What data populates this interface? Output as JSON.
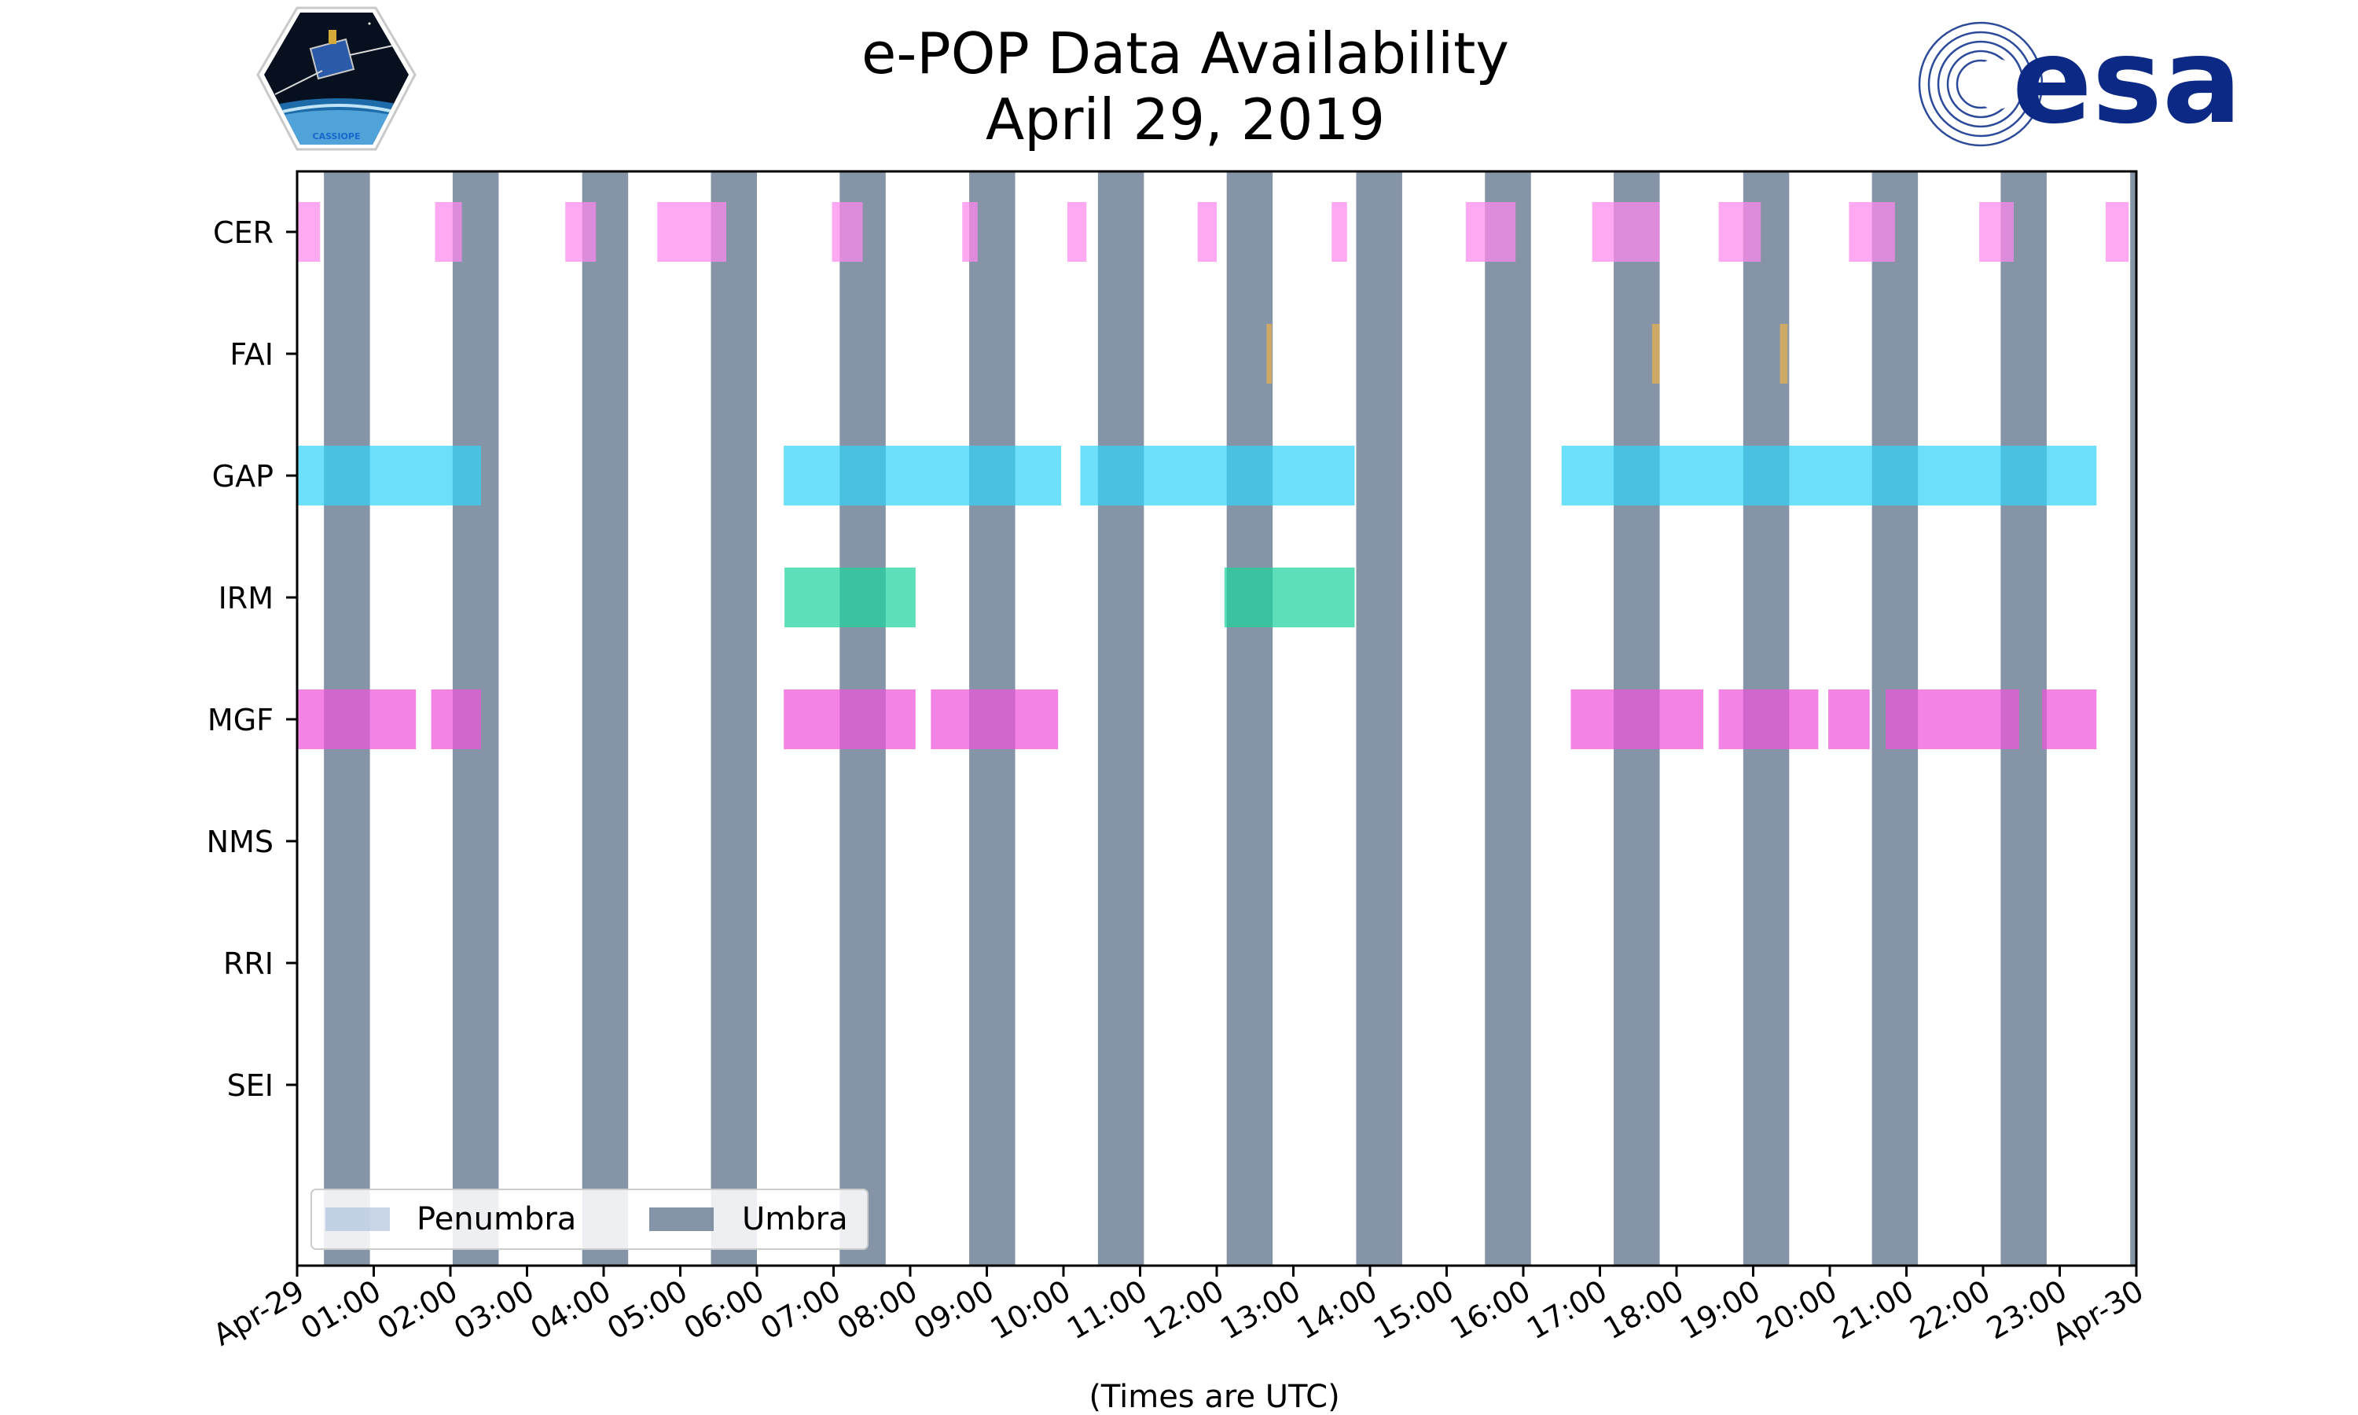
{
  "chart_data": {
    "type": "timeline",
    "title": "e-POP Data Availability",
    "subtitle": "April 29, 2019",
    "xlabel": "(Times are UTC)",
    "xlim": [
      0,
      24
    ],
    "x_tick_labels": [
      "Apr-29",
      "01:00",
      "02:00",
      "03:00",
      "04:00",
      "05:00",
      "06:00",
      "07:00",
      "08:00",
      "09:00",
      "10:00",
      "11:00",
      "12:00",
      "13:00",
      "14:00",
      "15:00",
      "16:00",
      "17:00",
      "18:00",
      "19:00",
      "20:00",
      "21:00",
      "22:00",
      "23:00",
      "Apr-30"
    ],
    "instruments": [
      "CER",
      "FAI",
      "GAP",
      "IRM",
      "MGF",
      "NMS",
      "RRI",
      "SEI"
    ],
    "legend": {
      "position": "lower-left",
      "entries": [
        {
          "name": "Penumbra",
          "color": "#b0c4de"
        },
        {
          "name": "Umbra",
          "color": "#5c7088"
        }
      ]
    },
    "umbra_periods": [
      [
        0.35,
        0.95
      ],
      [
        2.03,
        2.63
      ],
      [
        3.72,
        4.32
      ],
      [
        5.4,
        6.0
      ],
      [
        7.08,
        7.68
      ],
      [
        8.77,
        9.37
      ],
      [
        10.45,
        11.05
      ],
      [
        12.13,
        12.73
      ],
      [
        13.82,
        14.42
      ],
      [
        15.5,
        16.1
      ],
      [
        17.18,
        17.78
      ],
      [
        18.87,
        19.47
      ],
      [
        20.55,
        21.15
      ],
      [
        22.23,
        22.83
      ],
      [
        23.92,
        24.0
      ]
    ],
    "series": [
      {
        "name": "CER",
        "color": "#ff88ee",
        "intervals": [
          [
            0.0,
            0.3
          ],
          [
            1.8,
            2.15
          ],
          [
            3.5,
            3.9
          ],
          [
            4.7,
            5.6
          ],
          [
            6.98,
            7.38
          ],
          [
            8.68,
            8.88
          ],
          [
            10.05,
            10.3
          ],
          [
            11.75,
            12.0
          ],
          [
            13.5,
            13.7
          ],
          [
            15.25,
            15.9
          ],
          [
            16.9,
            17.78
          ],
          [
            18.55,
            19.1
          ],
          [
            20.25,
            20.85
          ],
          [
            21.95,
            22.4
          ],
          [
            23.6,
            23.9
          ]
        ]
      },
      {
        "name": "FAI",
        "color": "#e8b24e",
        "intervals": [
          [
            12.65,
            12.72
          ],
          [
            17.68,
            17.78
          ],
          [
            19.35,
            19.45
          ]
        ]
      },
      {
        "name": "GAP",
        "color": "#33d2f8",
        "intervals": [
          [
            0.0,
            2.4
          ],
          [
            6.35,
            9.97
          ],
          [
            10.22,
            13.8
          ],
          [
            16.5,
            23.48
          ]
        ]
      },
      {
        "name": "IRM",
        "color": "#1fd4a0",
        "intervals": [
          [
            6.36,
            8.07
          ],
          [
            12.1,
            13.8
          ]
        ]
      },
      {
        "name": "MGF",
        "color": "#ee55dd",
        "intervals": [
          [
            0.0,
            1.55
          ],
          [
            1.75,
            2.4
          ],
          [
            6.35,
            8.07
          ],
          [
            8.27,
            9.93
          ],
          [
            16.62,
            18.35
          ],
          [
            18.55,
            19.85
          ],
          [
            19.98,
            20.52
          ],
          [
            20.73,
            22.47
          ],
          [
            22.77,
            23.48
          ]
        ]
      },
      {
        "name": "NMS",
        "color": "#999999",
        "intervals": []
      },
      {
        "name": "RRI",
        "color": "#999999",
        "intervals": []
      },
      {
        "name": "SEI",
        "color": "#999999",
        "intervals": []
      }
    ]
  },
  "logos": {
    "left": "CASSIOPE",
    "right": "esa"
  }
}
